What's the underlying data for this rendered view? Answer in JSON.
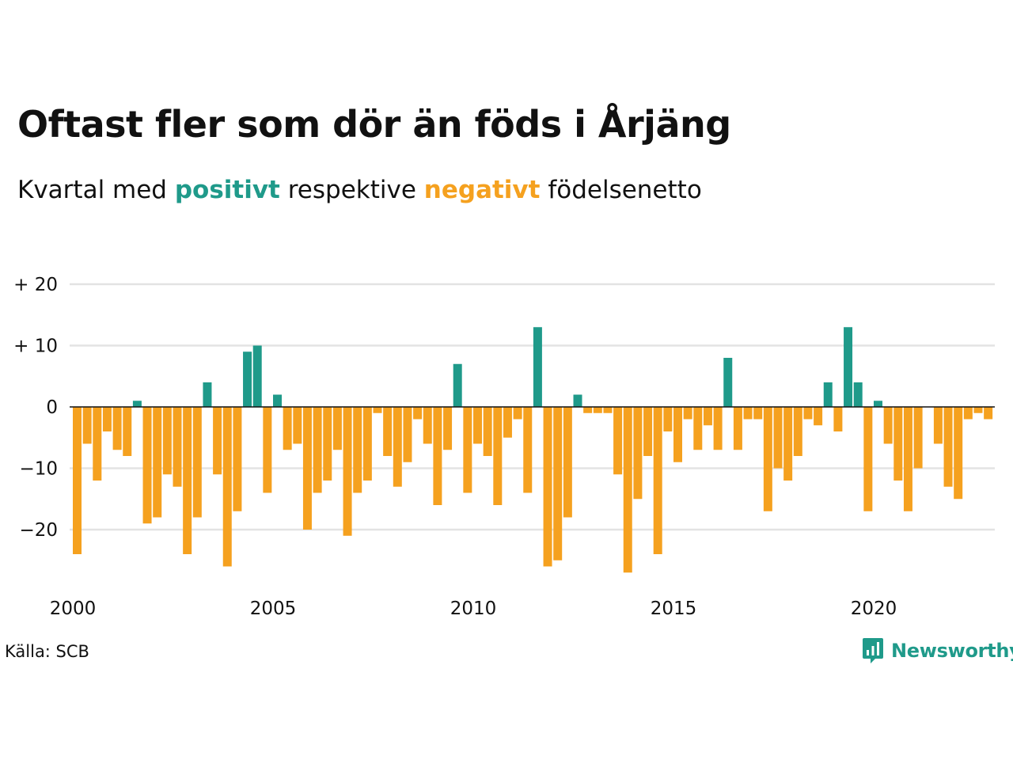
{
  "title": "Oftast fler som dör än föds i Årjäng",
  "subtitle": {
    "prefix": "Kvartal med ",
    "positive_word": "positivt",
    "middle": " respektive ",
    "negative_word": "negativt",
    "suffix": " födelsenetto"
  },
  "source": "Källa: SCB",
  "brand": {
    "name": "Newsworthy",
    "icon": "newsworthy-logo-icon"
  },
  "colors": {
    "positive": "#1f9a8a",
    "negative": "#f5a11f",
    "grid": "#e3e3e3",
    "zero_line": "#111111"
  },
  "chart_data": {
    "type": "bar",
    "x_start": "2000 Q1",
    "x_end": "2022 Q4",
    "x_ticks": [
      {
        "year": 2000,
        "label": "2000"
      },
      {
        "year": 2005,
        "label": "2005"
      },
      {
        "year": 2010,
        "label": "2010"
      },
      {
        "year": 2015,
        "label": "2015"
      },
      {
        "year": 2020,
        "label": "2020"
      }
    ],
    "y_ticks": [
      {
        "value": 20,
        "label": "+ 20"
      },
      {
        "value": 10,
        "label": "+ 10"
      },
      {
        "value": 0,
        "label": "0"
      },
      {
        "value": -10,
        "label": "−10"
      },
      {
        "value": -20,
        "label": "−20"
      }
    ],
    "ylim": [
      -28,
      22
    ],
    "grid": true,
    "values": [
      -24,
      -6,
      -12,
      -4,
      -7,
      -8,
      1,
      -19,
      -18,
      -11,
      -13,
      -24,
      -18,
      4,
      -11,
      -26,
      -17,
      9,
      10,
      -14,
      2,
      -7,
      -6,
      -20,
      -14,
      -12,
      -7,
      -21,
      -14,
      -12,
      -1,
      -8,
      -13,
      -9,
      -2,
      -6,
      -16,
      -7,
      7,
      -14,
      -6,
      -8,
      -16,
      -5,
      -2,
      -14,
      13,
      -26,
      -25,
      -18,
      2,
      -1,
      -1,
      -1,
      -11,
      -27,
      -15,
      -8,
      -24,
      -4,
      -9,
      -2,
      -7,
      -3,
      -7,
      8,
      -7,
      -2,
      -2,
      -17,
      -10,
      -12,
      -8,
      -2,
      -3,
      4,
      -4,
      13,
      4,
      -17,
      1,
      -6,
      -12,
      -17,
      -10,
      0,
      -6,
      -13,
      -15,
      -2,
      -1,
      -2
    ]
  }
}
